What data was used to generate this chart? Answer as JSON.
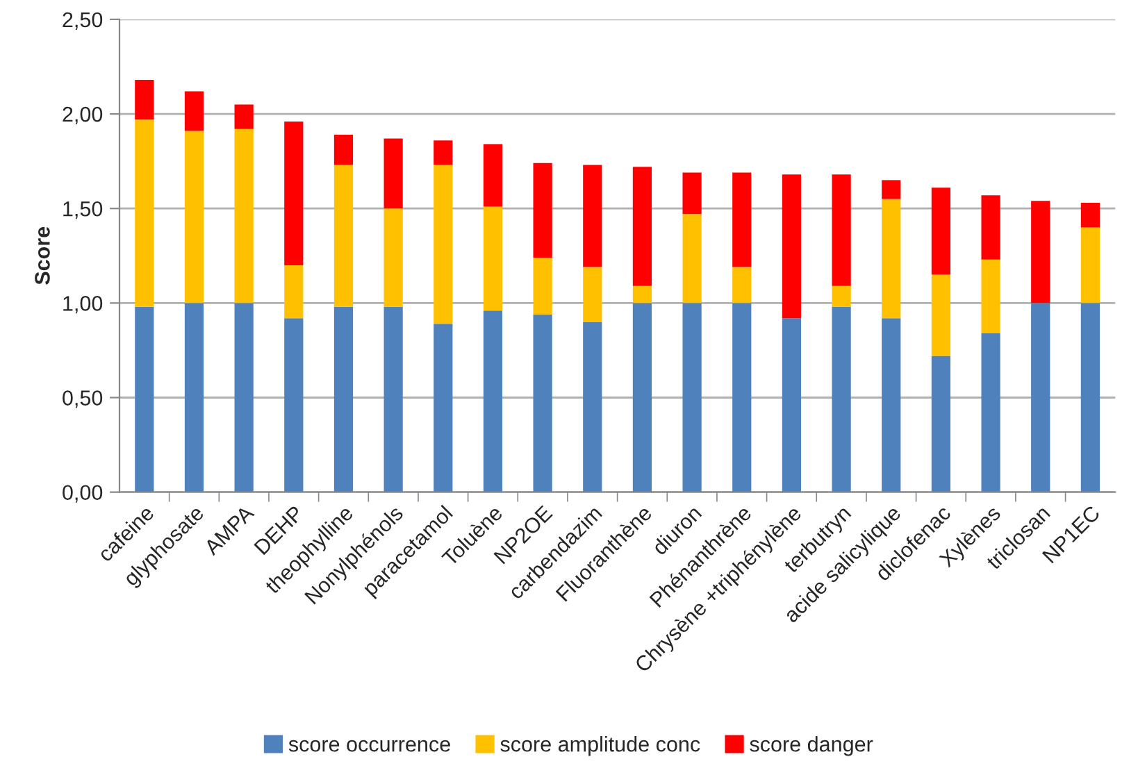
{
  "chart_data": {
    "type": "bar",
    "stacked": true,
    "ylabel": "Score",
    "categories": [
      "cafeine",
      "glyphosate",
      "AMPA",
      "DEHP",
      "theophylline",
      "Nonylphénols",
      "paracetamol",
      "Toluène",
      "NP2OE",
      "carbendazim",
      "Fluoranthène",
      "diuron",
      "Phénanthrène",
      "Chrysène +triphénylène",
      "terbutryn",
      "acide salicylique",
      "diclofenac",
      "Xylènes",
      "triclosan",
      "NP1EC"
    ],
    "series": [
      {
        "name": "score occurrence",
        "color": "#4f81bd",
        "values": [
          0.98,
          1.0,
          1.0,
          0.92,
          0.98,
          0.98,
          0.89,
          0.96,
          0.94,
          0.9,
          1.0,
          1.0,
          1.0,
          0.92,
          0.98,
          0.92,
          0.72,
          0.84,
          1.0,
          1.0
        ]
      },
      {
        "name": "score amplitude conc",
        "color": "#ffc000",
        "values": [
          0.99,
          0.91,
          0.92,
          0.28,
          0.75,
          0.52,
          0.84,
          0.55,
          0.3,
          0.29,
          0.09,
          0.47,
          0.19,
          0.0,
          0.11,
          0.63,
          0.43,
          0.39,
          0.0,
          0.4
        ]
      },
      {
        "name": "score danger",
        "color": "#ff0000",
        "values": [
          0.21,
          0.21,
          0.13,
          0.76,
          0.16,
          0.37,
          0.13,
          0.33,
          0.5,
          0.54,
          0.63,
          0.22,
          0.5,
          0.76,
          0.59,
          0.1,
          0.46,
          0.34,
          0.54,
          0.13
        ]
      }
    ],
    "ylim": [
      0,
      2.5
    ],
    "yticks": [
      {
        "value": 0,
        "label": "0,00"
      },
      {
        "value": 0.5,
        "label": "0,50"
      },
      {
        "value": 1,
        "label": "1,00"
      },
      {
        "value": 1.5,
        "label": "1,50"
      },
      {
        "value": 2,
        "label": "2,00"
      },
      {
        "value": 2.5,
        "label": "2,50"
      }
    ],
    "grid": "y",
    "legend": "bottom"
  }
}
